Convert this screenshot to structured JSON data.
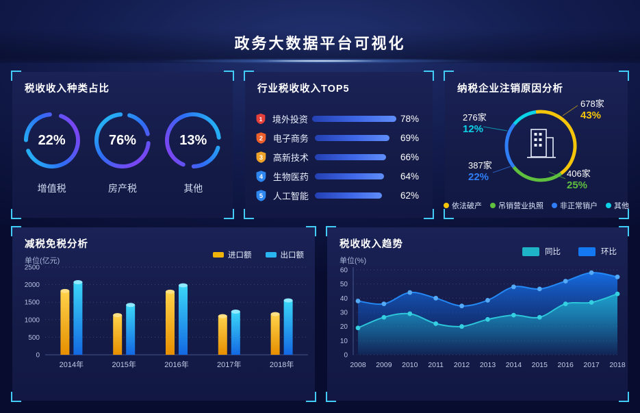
{
  "header": {
    "title": "政务大数据平台可视化"
  },
  "chart_data": [
    {
      "id": "tax_type_rings",
      "type": "pie",
      "title": "税收收入种类占比",
      "rings": [
        {
          "label": "增值税",
          "value": "22%"
        },
        {
          "label": "房产税",
          "value": "76%"
        },
        {
          "label": "其他",
          "value": "13%"
        }
      ],
      "ring_gradient": [
        "#22c8f5",
        "#2e6cf5",
        "#9638f0"
      ]
    },
    {
      "id": "industry_top5",
      "type": "bar",
      "title": "行业税收收入TOP5",
      "categories": [
        "境外投资",
        "电子商务",
        "高新技术",
        "生物医药",
        "人工智能"
      ],
      "values": [
        78,
        69,
        66,
        64,
        62
      ],
      "value_labels": [
        "78%",
        "69%",
        "66%",
        "64%",
        "62%"
      ],
      "ranks": [
        "1",
        "2",
        "3",
        "4",
        "5"
      ],
      "badge_colors": [
        "#e5403a",
        "#ee5f2b",
        "#f0a32b",
        "#2e86f0",
        "#2e86f0"
      ],
      "xlim": [
        0,
        100
      ],
      "bar_color_start": "#2440b2",
      "bar_color_end": "#5f8df8"
    },
    {
      "id": "cancellation_donut",
      "type": "pie",
      "title": "纳税企业注销原因分析",
      "slices": [
        {
          "label": "依法破产",
          "count": "678家",
          "percent": "43%",
          "value": 43,
          "color": "#f5c50a"
        },
        {
          "label": "吊销营业执照",
          "count": "406家",
          "percent": "25%",
          "value": 25,
          "color": "#5fbf3f"
        },
        {
          "label": "非正常销户",
          "count": "387家",
          "percent": "22%",
          "value": 22,
          "color": "#2f7ef6"
        },
        {
          "label": "其他",
          "count": "276家",
          "percent": "12%",
          "value": 12,
          "color": "#0cd2e8"
        }
      ],
      "center_icon": "building-icon"
    },
    {
      "id": "tax_reduction_bars",
      "type": "bar",
      "title": "减税免税分析",
      "unit_label": "单位(亿元)",
      "categories": [
        "2014年",
        "2015年",
        "2016年",
        "2017年",
        "2018年"
      ],
      "series": [
        {
          "name": "进口额",
          "color": "#f0b30a",
          "grad_top": "#ffd24a",
          "grad_bottom": "#e68f00",
          "cap": "#ffe084",
          "values": [
            1820,
            1130,
            1800,
            1100,
            1160
          ]
        },
        {
          "name": "出口额",
          "color": "#29b6f0",
          "grad_top": "#3bd6f8",
          "grad_bottom": "#1368e2",
          "cap": "#8feaff",
          "values": [
            2070,
            1420,
            1980,
            1230,
            1550
          ]
        }
      ],
      "ylim": [
        0,
        2500
      ],
      "yticks": [
        0,
        500,
        1000,
        1500,
        2000,
        2500
      ],
      "grid": "dotted",
      "legend_position": "top-right"
    },
    {
      "id": "tax_trend_area",
      "type": "area",
      "title": "税收收入趋势",
      "unit_label": "单位(%)",
      "x": [
        "2008",
        "2009",
        "2010",
        "2011",
        "2012",
        "2013",
        "2014",
        "2015",
        "2016",
        "2017",
        "2018"
      ],
      "series": [
        {
          "name": "同比",
          "color": "#1fb3c7",
          "line": "#2cc6da",
          "dot": "#35cfe2",
          "fill_top": "rgba(32,186,210,0.75)",
          "fill_bottom": "rgba(32,186,210,0.04)",
          "values": [
            19,
            26.5,
            29,
            22,
            20,
            25,
            28,
            26.5,
            36,
            37,
            43
          ]
        },
        {
          "name": "环比",
          "color": "#1478f0",
          "line": "#2488f5",
          "dot": "#55aaf8",
          "fill_top": "rgba(22,112,232,0.95)",
          "fill_bottom": "rgba(12,42,115,0.25)",
          "values": [
            38,
            36,
            44,
            40,
            34.5,
            38.5,
            48,
            46.5,
            52,
            58,
            55
          ]
        }
      ],
      "ylim": [
        0,
        60
      ],
      "yticks": [
        0,
        10,
        20,
        30,
        40,
        50,
        60
      ],
      "grid": "dotted",
      "legend_position": "top-right"
    }
  ]
}
